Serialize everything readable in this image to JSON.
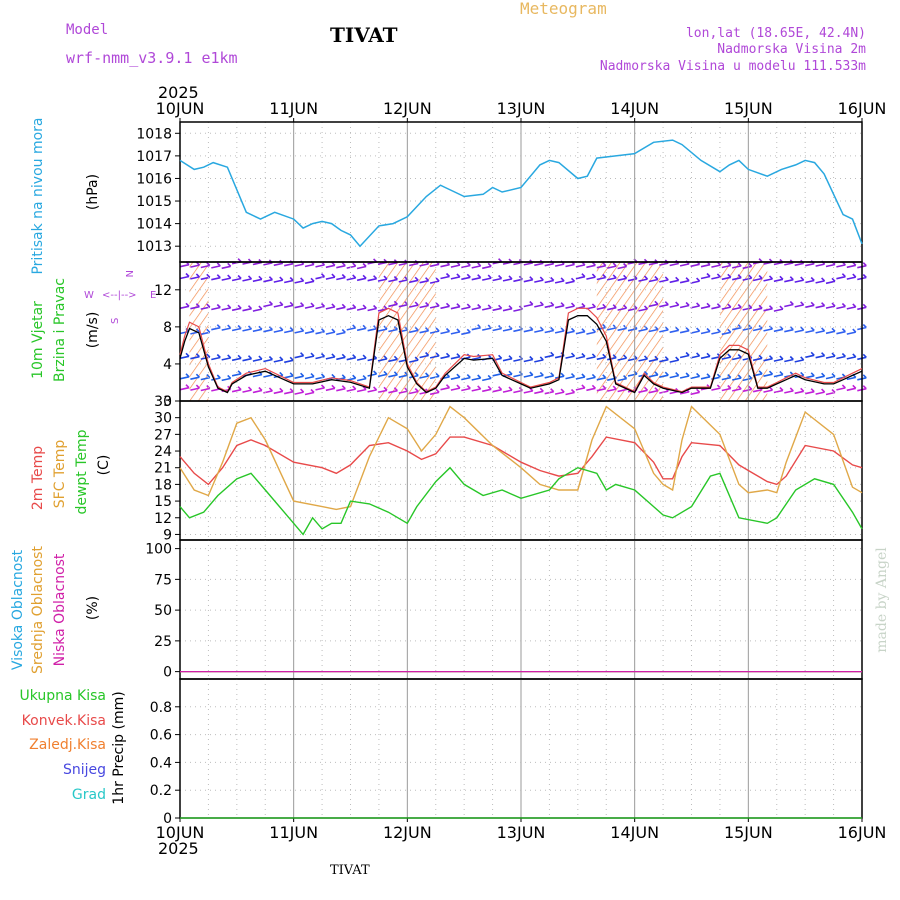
{
  "header": {
    "model_label": "Model",
    "model_name": "wrf-nmm_v3.9.1 e1km",
    "station": "TIVAT",
    "meteogram": "Meteogram",
    "lonlat": "lon,lat (18.65E, 42.4N)",
    "elevation": "Nadmorska Visina 2m",
    "model_elevation": "Nadmorska Visina u modelu 111.533m",
    "footer_station": "TIVAT",
    "credit": "made by Angel"
  },
  "colors": {
    "pressure": "#29a8e0",
    "wind_speed": "#000000",
    "temp_2m": "#e84a4a",
    "temp_sfc": "#e0a848",
    "dewpoint": "#28c628",
    "cloud_high": "#28a8e0",
    "cloud_mid": "#e0a030",
    "cloud_low": "#d020a8",
    "precip_total": "#28c628",
    "precip_conv": "#e84a4a",
    "precip_frz": "#f08030",
    "snow": "#4848e0",
    "hail": "#28c8c8",
    "wind_axis_labels": "#b048d8",
    "label_purple": "#b048d8",
    "meteogram_title": "#e8b860"
  },
  "chart_data": [
    {
      "id": "pressure",
      "type": "line",
      "ylabel": "Pritisak na nivou mora",
      "unit": "(hPa)",
      "year": "2025",
      "x_ticks": [
        "10JUN",
        "11JUN",
        "12JUN",
        "13JUN",
        "14JUN",
        "15JUN",
        "16JUN"
      ],
      "x_unit": "hours since 10JUN 00",
      "ylim": [
        1012.3,
        1018.5
      ],
      "yticks": [
        1013,
        1014,
        1015,
        1016,
        1017,
        1018
      ],
      "grid": true,
      "series": [
        {
          "x": [
            0,
            3,
            5,
            7,
            10,
            14,
            17,
            20,
            24,
            26,
            28,
            30,
            32,
            34,
            36,
            38,
            42,
            45,
            48,
            52,
            55,
            56,
            60,
            64,
            66,
            68,
            72,
            76,
            78,
            80,
            84,
            86,
            88,
            92,
            96,
            100,
            104,
            106,
            110,
            114,
            116,
            118,
            120,
            124,
            127,
            130,
            132,
            134,
            136,
            138,
            140,
            142,
            144
          ],
          "y": [
            1016.8,
            1016.4,
            1016.5,
            1016.7,
            1016.5,
            1014.5,
            1014.2,
            1014.5,
            1014.2,
            1013.8,
            1014.0,
            1014.1,
            1014.0,
            1013.7,
            1013.5,
            1013.0,
            1013.9,
            1014.0,
            1014.3,
            1015.2,
            1015.7,
            1015.6,
            1015.2,
            1015.3,
            1015.6,
            1015.4,
            1015.6,
            1016.6,
            1016.8,
            1016.7,
            1016.0,
            1016.1,
            1016.9,
            1017.0,
            1017.1,
            1017.6,
            1017.7,
            1017.5,
            1016.8,
            1016.3,
            1016.6,
            1016.8,
            1016.4,
            1016.1,
            1016.4,
            1016.6,
            1016.8,
            1016.7,
            1016.2,
            1015.3,
            1014.4,
            1014.2,
            1013.1
          ]
        }
      ]
    },
    {
      "id": "wind",
      "type": "line",
      "ylabel": "10m Vjetar",
      "ylabel2": "Brzina i Pravac",
      "unit": "(m/s)",
      "compass": [
        "N",
        "W",
        "E",
        "S"
      ],
      "ylim": [
        0,
        15
      ],
      "yticks": [
        0,
        4,
        8,
        12
      ],
      "grid": true,
      "speed": {
        "x": [
          0,
          1,
          2,
          4,
          6,
          8,
          10,
          11,
          14,
          18,
          22,
          24,
          28,
          32,
          36,
          40,
          42,
          44,
          46,
          48,
          50,
          52,
          54,
          56,
          58,
          60,
          62,
          66,
          68,
          72,
          74,
          78,
          80,
          82,
          84,
          86,
          88,
          90,
          92,
          96,
          98,
          100,
          102,
          106,
          108,
          112,
          114,
          116,
          118,
          120,
          122,
          124,
          126,
          128,
          130,
          132,
          136,
          138,
          140,
          142,
          144
        ],
        "y": [
          5,
          7,
          8.5,
          8,
          4,
          1.5,
          1,
          2,
          3,
          3.5,
          2.5,
          2,
          2,
          2.5,
          2.2,
          1.5,
          9.5,
          10,
          9.5,
          4,
          2,
          1,
          1.5,
          3,
          4,
          5,
          4.8,
          5,
          3,
          2,
          1.5,
          2,
          2.5,
          9.5,
          10,
          10,
          9,
          7,
          2,
          1,
          3,
          2,
          1.5,
          1,
          1.5,
          1.5,
          5,
          6,
          6,
          5.5,
          1.5,
          1.5,
          2,
          2.5,
          3,
          2.5,
          2,
          2,
          2.5,
          3,
          3.5
        ]
      },
      "storm_zones": [
        [
          2,
          6
        ],
        [
          42,
          54
        ],
        [
          88,
          102
        ],
        [
          114,
          124
        ]
      ]
    },
    {
      "id": "temperature",
      "type": "line",
      "ylabel": "2m Temp",
      "ylabel2": "SFC Temp",
      "ylabel3": "dewpt Temp",
      "unit": "(C)",
      "ylim": [
        8,
        33
      ],
      "yticks": [
        9,
        12,
        15,
        18,
        21,
        24,
        27,
        30,
        33
      ],
      "grid": true,
      "series": [
        {
          "name": "2m Temp",
          "x": [
            0,
            3,
            6,
            9,
            12,
            15,
            18,
            24,
            30,
            33,
            36,
            40,
            44,
            48,
            51,
            54,
            57,
            60,
            66,
            72,
            76,
            80,
            84,
            87,
            90,
            96,
            100,
            102,
            104,
            106,
            108,
            114,
            118,
            120,
            124,
            126,
            128,
            132,
            138,
            142,
            144
          ],
          "y": [
            23,
            20,
            18,
            21,
            25,
            26,
            25,
            22,
            21,
            20,
            21.5,
            25,
            25.5,
            24,
            22.5,
            23.5,
            26.5,
            26.5,
            25,
            22,
            20.5,
            19.5,
            20,
            23,
            26.5,
            25.5,
            22,
            19,
            19,
            23,
            25.5,
            25,
            21.5,
            20.5,
            18.5,
            18,
            19.5,
            25,
            24,
            21.5,
            21
          ]
        },
        {
          "name": "SFC Temp",
          "x": [
            0,
            3,
            6,
            9,
            12,
            15,
            18,
            24,
            30,
            33,
            36,
            40,
            44,
            48,
            51,
            54,
            57,
            60,
            66,
            72,
            76,
            80,
            84,
            87,
            90,
            96,
            100,
            102,
            104,
            106,
            108,
            114,
            118,
            120,
            124,
            126,
            128,
            132,
            138,
            142,
            144
          ],
          "y": [
            21,
            17,
            16,
            22,
            29,
            30,
            26,
            15,
            14,
            13.5,
            14,
            23,
            30,
            28,
            24,
            27,
            32,
            30,
            25,
            21,
            18,
            17,
            17,
            26,
            32,
            28,
            20,
            18,
            17,
            26,
            32,
            27,
            18,
            16.5,
            17,
            16.5,
            22,
            31,
            27,
            17.5,
            16.5
          ]
        },
        {
          "name": "dewpt Temp",
          "x": [
            0,
            2,
            5,
            8,
            12,
            15,
            18,
            22,
            26,
            28,
            30,
            32,
            34,
            36,
            40,
            44,
            48,
            50,
            54,
            57,
            60,
            64,
            68,
            72,
            78,
            80,
            84,
            88,
            90,
            92,
            96,
            100,
            102,
            104,
            108,
            112,
            114,
            118,
            124,
            126,
            130,
            134,
            138,
            142,
            144
          ],
          "y": [
            14,
            12,
            13,
            16,
            19,
            20,
            17,
            13,
            9,
            12,
            10,
            11,
            11,
            15,
            14.5,
            13,
            11,
            14,
            18.5,
            21,
            18,
            16,
            17,
            15.5,
            17,
            19,
            21,
            20,
            17,
            18,
            17,
            14,
            12.5,
            12,
            14,
            19.5,
            20,
            12,
            11,
            12,
            17,
            19,
            18,
            13,
            10
          ]
        }
      ]
    },
    {
      "id": "clouds",
      "type": "line",
      "ylabel": "Visoka Oblacnost",
      "ylabel2": "Srednja Oblacnost",
      "ylabel3": "Niska Oblacnost",
      "unit": "(%)",
      "ylim": [
        -6,
        107
      ],
      "yticks": [
        0,
        25,
        50,
        75,
        100
      ],
      "grid": true,
      "series": [
        {
          "name": "Visoka Oblacnost",
          "x": [
            0,
            144
          ],
          "y": [
            0,
            0
          ]
        },
        {
          "name": "Srednja Oblacnost",
          "x": [
            0,
            144
          ],
          "y": [
            0,
            0
          ]
        },
        {
          "name": "Niska Oblacnost",
          "x": [
            0,
            144
          ],
          "y": [
            0,
            0
          ]
        }
      ]
    },
    {
      "id": "precip",
      "type": "line",
      "ylabel": "1hr Precip (mm)",
      "ylim": [
        0,
        1.0
      ],
      "yticks": [
        0,
        0.2,
        0.4,
        0.6,
        0.8
      ],
      "grid": true,
      "x_ticks": [
        "10JUN",
        "11JUN",
        "12JUN",
        "13JUN",
        "14JUN",
        "15JUN",
        "16JUN"
      ],
      "year": "2025",
      "legend": [
        "Ukupna Kisa",
        "Konvek.Kisa",
        "Zaledj.Kisa",
        "Snijeg",
        "Grad"
      ],
      "series": [
        {
          "name": "Ukupna Kisa",
          "x": [
            0,
            144
          ],
          "y": [
            0,
            0
          ]
        }
      ]
    }
  ]
}
